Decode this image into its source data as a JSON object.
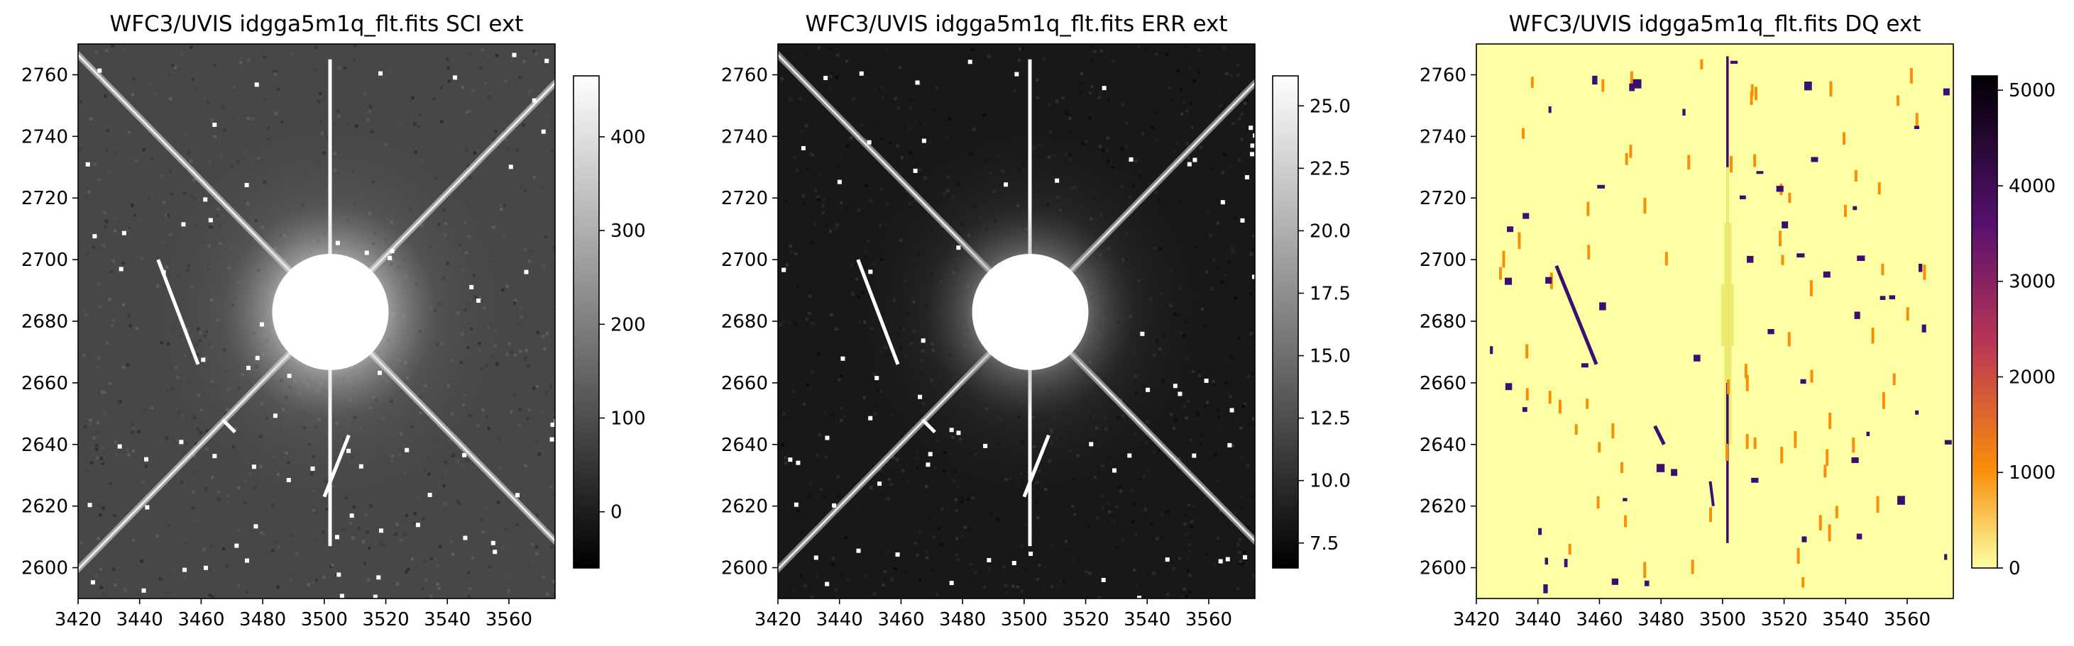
{
  "chart_data": [
    {
      "type": "heatmap",
      "title": "WFC3/UVIS idgga5m1q_flt.fits SCI ext",
      "xlim": [
        3420,
        3575
      ],
      "ylim": [
        2590,
        2770
      ],
      "x_ticks": [
        "3420",
        "3440",
        "3460",
        "3480",
        "3500",
        "3520",
        "3540",
        "3560"
      ],
      "y_ticks": [
        "2600",
        "2620",
        "2640",
        "2660",
        "2680",
        "2700",
        "2720",
        "2740",
        "2760"
      ],
      "colormap": "gray",
      "colorbar": {
        "range": [
          -60,
          465
        ],
        "ticks": [
          "0",
          "100",
          "200",
          "300",
          "400"
        ]
      },
      "features": {
        "star_center": [
          3502,
          2683
        ],
        "core_value": 465,
        "background": 75
      }
    },
    {
      "type": "heatmap",
      "title": "WFC3/UVIS idgga5m1q_flt.fits ERR ext",
      "xlim": [
        3420,
        3575
      ],
      "ylim": [
        2590,
        2770
      ],
      "x_ticks": [
        "3420",
        "3440",
        "3460",
        "3480",
        "3500",
        "3520",
        "3540",
        "3560"
      ],
      "y_ticks": [
        "2600",
        "2620",
        "2640",
        "2660",
        "2680",
        "2700",
        "2720",
        "2740",
        "2760"
      ],
      "colormap": "gray",
      "colorbar": {
        "range": [
          6.5,
          26.2
        ],
        "ticks": [
          "7.5",
          "10.0",
          "12.5",
          "15.0",
          "17.5",
          "20.0",
          "22.5",
          "25.0"
        ]
      },
      "features": {
        "star_center": [
          3502,
          2683
        ],
        "core_value": 26,
        "background": 8.5
      }
    },
    {
      "type": "heatmap",
      "title": "WFC3/UVIS idgga5m1q_flt.fits DQ ext",
      "xlim": [
        3420,
        3575
      ],
      "ylim": [
        2590,
        2770
      ],
      "x_ticks": [
        "3420",
        "3440",
        "3460",
        "3480",
        "3500",
        "3520",
        "3540",
        "3560"
      ],
      "y_ticks": [
        "2600",
        "2620",
        "2640",
        "2660",
        "2680",
        "2700",
        "2720",
        "2740",
        "2760"
      ],
      "colormap": "inferno_r",
      "colorbar": {
        "range": [
          0,
          5150
        ],
        "ticks": [
          "0",
          "1000",
          "2000",
          "3000",
          "4000",
          "5000"
        ]
      },
      "flag_values": {
        "background": 0,
        "hot_pixel": 1024,
        "cosmic_ray": 4096,
        "saturated": 5120
      }
    }
  ]
}
